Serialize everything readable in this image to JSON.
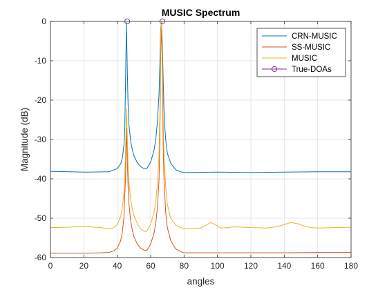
{
  "chart_data": {
    "type": "line",
    "title": "MUSIC Spectrum",
    "xlabel": "angles",
    "ylabel": "Magnitude (dB)",
    "xlim": [
      0,
      180
    ],
    "ylim": [
      -60,
      0
    ],
    "xticks": [
      0,
      20,
      40,
      60,
      80,
      100,
      120,
      140,
      160,
      180
    ],
    "yticks": [
      0,
      -10,
      -20,
      -30,
      -40,
      -50,
      -60
    ],
    "grid": true,
    "legend_position": "top-right",
    "series": [
      {
        "name": "CRN-MUSIC",
        "color": "#0072BD",
        "x": [
          0,
          20,
          35,
          40,
          42,
          43,
          44,
          44.5,
          45,
          45.5,
          46,
          46.5,
          47,
          48,
          49,
          50,
          52,
          54,
          56,
          57,
          58,
          60,
          62,
          63,
          64,
          65,
          65.5,
          66,
          66.5,
          67,
          67.5,
          68,
          68.5,
          69,
          70,
          72,
          75,
          78,
          80,
          100,
          120,
          140,
          160,
          180
        ],
        "y": [
          -38.1,
          -38.3,
          -38.2,
          -37.4,
          -36.2,
          -34.8,
          -31.5,
          -27.5,
          -14,
          -0.3,
          -12,
          -21.5,
          -26.3,
          -30.3,
          -32.6,
          -34.1,
          -35.9,
          -36.9,
          -37.4,
          -37.5,
          -37.2,
          -35.7,
          -32.8,
          -30.2,
          -25.8,
          -18.5,
          -11,
          -2,
          -0.1,
          -5,
          -15,
          -22.5,
          -27,
          -30,
          -33.5,
          -36,
          -37.7,
          -38.2,
          -38.4,
          -38.3,
          -38.4,
          -38.3,
          -38.2,
          -38.2
        ]
      },
      {
        "name": "SS-MUSIC",
        "color": "#D95319",
        "x": [
          0,
          20,
          30,
          35,
          38,
          40,
          42,
          43,
          44,
          45,
          45.5,
          46,
          46.5,
          47,
          48,
          49,
          50,
          52,
          54,
          56,
          57,
          58,
          60,
          62,
          63,
          64,
          65,
          65.5,
          66,
          66.5,
          67,
          67.5,
          68,
          69,
          70,
          72,
          75,
          78,
          80,
          100,
          120,
          140,
          160,
          180
        ],
        "y": [
          -58.9,
          -58.9,
          -58.8,
          -58.7,
          -58.3,
          -57.6,
          -55.8,
          -53.7,
          -49.7,
          -39,
          -27.1,
          -34.5,
          -42,
          -46.3,
          -50.6,
          -53,
          -54.7,
          -56.6,
          -57.6,
          -58.1,
          -58.2,
          -58,
          -56.6,
          -53.8,
          -51.5,
          -47.5,
          -40.5,
          -31,
          -8.5,
          -0.2,
          -14,
          -31,
          -40.5,
          -48.5,
          -52.4,
          -55.7,
          -57.8,
          -58.5,
          -58.8,
          -58.8,
          -58.8,
          -58.8,
          -58.7,
          -58.7
        ]
      },
      {
        "name": "MUSIC",
        "color": "#EDB120",
        "x": [
          0,
          10,
          20,
          30,
          35,
          38,
          40,
          42,
          43,
          44,
          45,
          45.5,
          46,
          46.5,
          47,
          48,
          49,
          50,
          52,
          54,
          56,
          57,
          58,
          60,
          62,
          63,
          64,
          65,
          65.5,
          66,
          66.5,
          67,
          67.5,
          68,
          69,
          70,
          72,
          75,
          78,
          80,
          85,
          90,
          93,
          96,
          99,
          102,
          106,
          110,
          120,
          130,
          136,
          140,
          144,
          148,
          152,
          156,
          160,
          170,
          180
        ],
        "y": [
          -52.4,
          -52.3,
          -52.1,
          -52.4,
          -52.7,
          -52.4,
          -51.6,
          -49.6,
          -47.5,
          -43.5,
          -33,
          -22,
          -29,
          -37,
          -41,
          -45.2,
          -47.6,
          -49.3,
          -51.4,
          -52.7,
          -53.3,
          -53.4,
          -53.1,
          -51.5,
          -48.5,
          -46,
          -41.5,
          -34,
          -24,
          -3,
          -0.1,
          -7,
          -25,
          -34,
          -42,
          -46.5,
          -50,
          -51.8,
          -52.4,
          -52.6,
          -52.7,
          -52.5,
          -51.8,
          -51.1,
          -51.7,
          -52.5,
          -52.4,
          -52.2,
          -52.4,
          -52.5,
          -52.1,
          -51.6,
          -51.1,
          -51.4,
          -52,
          -52.4,
          -52.5,
          -52.4,
          -52.3
        ]
      },
      {
        "name": "True-DOAs",
        "color": "#7E2F8E",
        "marker": "circle",
        "line": false,
        "x": [
          46,
          67
        ],
        "y": [
          0,
          0
        ]
      }
    ]
  }
}
